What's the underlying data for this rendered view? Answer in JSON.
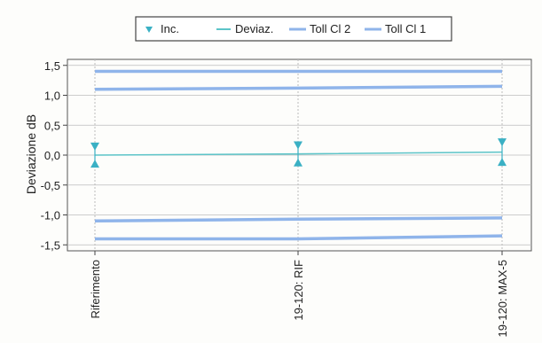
{
  "chart_data": {
    "type": "line",
    "categories": [
      "Riferimento",
      "19-120: RIF",
      "19-120: MAX-5"
    ],
    "ylabel": "Deviazione dB",
    "ylim": [
      -1.6,
      1.6
    ],
    "y_ticks": [
      1.5,
      1.0,
      0.5,
      0.0,
      -0.5,
      -1.0,
      -1.5
    ],
    "y_tick_labels": [
      "1,5",
      "1,0",
      "0,5",
      "0,0",
      "-0,5",
      "-1,0",
      "-1,5"
    ],
    "grid": true,
    "legend_position": "top-center",
    "series": [
      {
        "name": "Inc.",
        "kind": "uncertainty",
        "values": [
          0.12,
          0.12,
          0.14
        ],
        "color": "#3ab0c4"
      },
      {
        "name": "Deviaz.",
        "kind": "line",
        "values": [
          0.0,
          0.02,
          0.05
        ],
        "color": "#5cc4c8"
      },
      {
        "name": "Toll Cl 2",
        "kind": "tolerance",
        "upper": [
          1.4,
          1.4,
          1.4
        ],
        "lower": [
          -1.4,
          -1.4,
          -1.35
        ],
        "color": "#8fb4ea"
      },
      {
        "name": "Toll Cl 1",
        "kind": "tolerance",
        "upper": [
          1.1,
          1.12,
          1.15
        ],
        "lower": [
          -1.1,
          -1.07,
          -1.05
        ],
        "color": "#8fb4ea"
      }
    ]
  }
}
